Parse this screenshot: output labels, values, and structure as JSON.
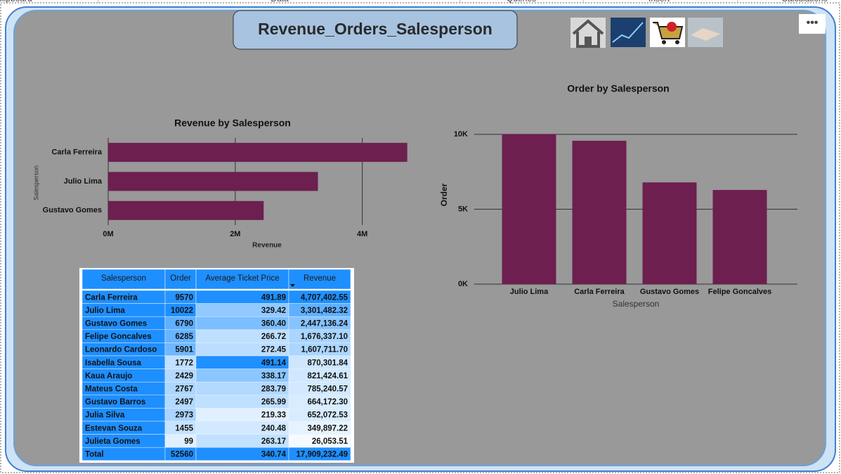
{
  "ribbon": [
    "Clipboard",
    "Data",
    "Queries",
    "Insert",
    "Calculations"
  ],
  "page": {
    "title": "Revenue_Orders_Salesperson"
  },
  "chart_data": [
    {
      "type": "hbar",
      "title": "Revenue by Salesperson",
      "x_label": "Revenue",
      "y_label": "Salesperson",
      "categories": [
        "Carla Ferreira",
        "Julio Lima",
        "Gustavo Gomes"
      ],
      "values": [
        4707402.55,
        3301482.32,
        2447136.24
      ],
      "color": "#6d1f4f",
      "xlim": [
        0,
        4800000
      ],
      "xticks": [
        {
          "value": 0,
          "label": "0M"
        },
        {
          "value": 2000000,
          "label": "2M"
        },
        {
          "value": 4000000,
          "label": "4M"
        }
      ],
      "grid": true
    },
    {
      "type": "bar",
      "title": "Order by Salesperson",
      "x_label": "Salesperson",
      "y_label": "Order",
      "categories": [
        "Julio Lima",
        "Carla Ferreira",
        "Gustavo Gomes",
        "Felipe Goncalves"
      ],
      "values": [
        10022,
        9570,
        6790,
        6285
      ],
      "color": "#6d1f4f",
      "ylim": [
        0,
        10000
      ],
      "yticks": [
        {
          "value": 0,
          "label": "0K"
        },
        {
          "value": 5000,
          "label": "5K"
        },
        {
          "value": 10000,
          "label": "10K"
        }
      ],
      "grid": true
    }
  ],
  "table": {
    "columns": [
      "Salesperson",
      "Order",
      "Average Ticket Price",
      "Revenue"
    ],
    "rows": [
      [
        "Carla Ferreira",
        "9570",
        "491.89",
        "4,707,402.55"
      ],
      [
        "Julio Lima",
        "10022",
        "329.42",
        "3,301,482.32"
      ],
      [
        "Gustavo Gomes",
        "6790",
        "360.40",
        "2,447,136.24"
      ],
      [
        "Felipe Goncalves",
        "6285",
        "266.72",
        "1,676,337.10"
      ],
      [
        "Leonardo Cardoso",
        "5901",
        "272.45",
        "1,607,711.70"
      ],
      [
        "Isabella Sousa",
        "1772",
        "491.14",
        "870,301.84"
      ],
      [
        "Kaua Araujo",
        "2429",
        "338.17",
        "821,424.61"
      ],
      [
        "Mateus Costa",
        "2767",
        "283.79",
        "785,240.57"
      ],
      [
        "Gustavo Barros",
        "2497",
        "265.99",
        "664,172.30"
      ],
      [
        "Julia Silva",
        "2973",
        "219.33",
        "652,072.53"
      ],
      [
        "Estevan Souza",
        "1455",
        "240.48",
        "349,897.22"
      ],
      [
        "Julieta Gomes",
        "99",
        "263.17",
        "26,053.51"
      ]
    ],
    "total": [
      "Total",
      "52560",
      "340.74",
      "17,909,232.49"
    ]
  }
}
